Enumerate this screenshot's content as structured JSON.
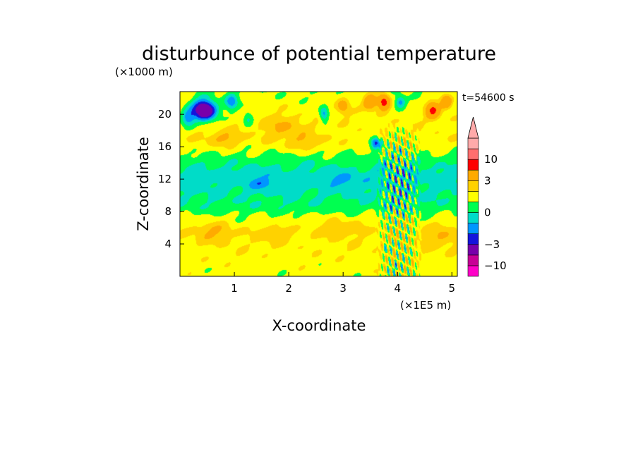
{
  "chart_data": {
    "type": "heatmap",
    "title": "disturbunce of potential temperature",
    "xlabel": "X-coordinate",
    "ylabel": "Z-coordinate",
    "x_unit": "(×1E5 m)",
    "y_unit": "(×1000 m)",
    "time_label": "t=54600 s",
    "xlim": [
      0,
      5.1
    ],
    "ylim": [
      0,
      22.8
    ],
    "x_ticks": [
      "1",
      "2",
      "3",
      "4",
      "5"
    ],
    "y_ticks": [
      "4",
      "8",
      "12",
      "16",
      "20"
    ],
    "colorbar": {
      "labels": [
        "10",
        "3",
        "0",
        "−3",
        "−10"
      ],
      "label_values": [
        10,
        3,
        0,
        -3,
        -10
      ],
      "levels": [
        -20,
        -10,
        -6,
        -3,
        -2,
        -1,
        0,
        1,
        2,
        3,
        6,
        10,
        20
      ],
      "colors": [
        "#ff00c8",
        "#c80096",
        "#7800aa",
        "#1414dc",
        "#0096ff",
        "#00dcc8",
        "#00ff50",
        "#ffff00",
        "#ffd200",
        "#ffaa00",
        "#ff0000",
        "#ff6e6e",
        "#ffaaaa"
      ],
      "extend": "max"
    },
    "field": {
      "x_range": [
        0,
        5.1
      ],
      "z_range": [
        0,
        22.8
      ],
      "bands": [
        {
          "z": 0.0,
          "value": 1.4
        },
        {
          "z": 2.0,
          "value": 1.6
        },
        {
          "z": 4.0,
          "value": 1.8
        },
        {
          "z": 6.0,
          "value": 1.7
        },
        {
          "z": 7.5,
          "value": 1.1
        },
        {
          "z": 8.5,
          "value": 0.3
        },
        {
          "z": 10.5,
          "value": -0.2
        },
        {
          "z": 12.5,
          "value": -0.5
        },
        {
          "z": 14.0,
          "value": 0.2
        },
        {
          "z": 15.5,
          "value": 1.2
        },
        {
          "z": 17.0,
          "value": 1.8
        },
        {
          "z": 19.0,
          "value": 1.7
        },
        {
          "z": 21.0,
          "value": 1.5
        },
        {
          "z": 22.8,
          "value": 1.2
        }
      ],
      "features": [
        {
          "x": 0.45,
          "z": 20.5,
          "sx": 0.22,
          "sz": 1.3,
          "amp": -7
        },
        {
          "x": 0.15,
          "z": 19.5,
          "sx": 0.12,
          "sz": 1.0,
          "amp": -3
        },
        {
          "x": 0.95,
          "z": 21.5,
          "sx": 0.12,
          "sz": 1.0,
          "amp": -3
        },
        {
          "x": 1.25,
          "z": 19.5,
          "sx": 0.1,
          "sz": 0.9,
          "amp": -2
        },
        {
          "x": 2.65,
          "z": 20.0,
          "sx": 0.08,
          "sz": 0.9,
          "amp": -3
        },
        {
          "x": 3.6,
          "z": 16.5,
          "sx": 0.1,
          "sz": 0.8,
          "amp": -4
        },
        {
          "x": 3.5,
          "z": 21.5,
          "sx": 0.12,
          "sz": 0.9,
          "amp": 4
        },
        {
          "x": 3.75,
          "z": 21.5,
          "sx": 0.1,
          "sz": 0.9,
          "amp": 6
        },
        {
          "x": 4.65,
          "z": 20.5,
          "sx": 0.12,
          "sz": 1.0,
          "amp": 5
        },
        {
          "x": 4.9,
          "z": 21.5,
          "sx": 0.1,
          "sz": 0.8,
          "amp": 4
        },
        {
          "x": 3.0,
          "z": 21.0,
          "sx": 0.12,
          "sz": 1.0,
          "amp": 2.5
        },
        {
          "x": 4.05,
          "z": 21.5,
          "sx": 0.1,
          "sz": 0.8,
          "amp": -3
        },
        {
          "x": 0.8,
          "z": 17.0,
          "sx": 0.3,
          "sz": 1.0,
          "amp": 1.5
        },
        {
          "x": 1.9,
          "z": 18.5,
          "sx": 0.4,
          "sz": 1.4,
          "amp": 1.4
        },
        {
          "x": 2.3,
          "z": 16.5,
          "sx": 0.35,
          "sz": 1.0,
          "amp": 1.2
        },
        {
          "x": 1.5,
          "z": 11.5,
          "sx": 0.25,
          "sz": 0.7,
          "amp": -1.3
        },
        {
          "x": 3.0,
          "z": 11.8,
          "sx": 0.3,
          "sz": 0.7,
          "amp": -1.0
        },
        {
          "x": 0.6,
          "z": 5.5,
          "sx": 0.35,
          "sz": 1.2,
          "amp": 1.4
        },
        {
          "x": 1.7,
          "z": 5.2,
          "sx": 0.3,
          "sz": 1.0,
          "amp": 1.2
        },
        {
          "x": 3.0,
          "z": 6.0,
          "sx": 0.4,
          "sz": 1.2,
          "amp": 1.1
        },
        {
          "x": 4.8,
          "z": 5.0,
          "sx": 0.3,
          "sz": 1.5,
          "amp": 1.3
        },
        {
          "x": 3.8,
          "z": 3.5,
          "sx": 0.05,
          "sz": 0.6,
          "amp": -2
        }
      ],
      "wave_region": {
        "x0": 3.6,
        "x1": 4.45,
        "z0": 0.0,
        "z1": 19.0,
        "amp": 3.5,
        "kx": 60,
        "kz": 1.2
      }
    }
  }
}
